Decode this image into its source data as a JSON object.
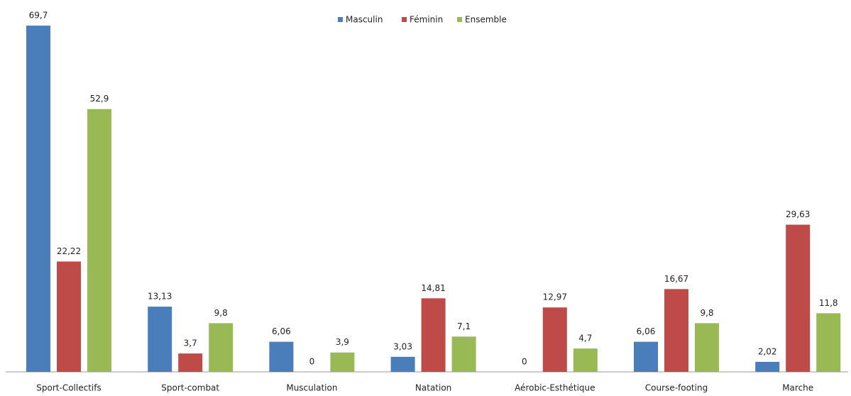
{
  "chart_data": {
    "type": "bar",
    "categories": [
      "Sport-Collectifs",
      "Sport-combat",
      "Musculation",
      "Natation",
      "Aérobic-Esthétique",
      "Course-footing",
      "Marche"
    ],
    "series": [
      {
        "name": "Masculin",
        "color": "#4a7ebb",
        "values": [
          69.7,
          13.13,
          6.06,
          3.03,
          0,
          6.06,
          2.02
        ],
        "value_labels": [
          "69,7",
          "13,13",
          "6,06",
          "3,03",
          "0",
          "6,06",
          "2,02"
        ]
      },
      {
        "name": "Féminin",
        "color": "#be4b48",
        "values": [
          22.22,
          3.7,
          0,
          14.81,
          12.97,
          16.67,
          29.63
        ],
        "value_labels": [
          "22,22",
          "3,7",
          "0",
          "14,81",
          "12,97",
          "16,67",
          "29,63"
        ]
      },
      {
        "name": "Ensemble",
        "color": "#98b954",
        "values": [
          52.9,
          9.8,
          3.9,
          7.1,
          4.7,
          9.8,
          11.8
        ],
        "value_labels": [
          "52,9",
          "9,8",
          "3,9",
          "7,1",
          "4,7",
          "9,8",
          "11,8"
        ]
      }
    ],
    "ylim": [
      0,
      70
    ],
    "legend": "top"
  }
}
